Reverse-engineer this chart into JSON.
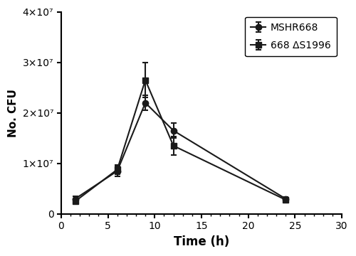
{
  "time": [
    1.5,
    6,
    9,
    12,
    24
  ],
  "mshr668_mean": [
    3000000.0,
    8500000.0,
    22000000.0,
    16500000.0,
    3000000.0
  ],
  "mshr668_err": [
    500000.0,
    1000000.0,
    1500000.0,
    1500000.0,
    400000.0
  ],
  "delta_mean": [
    2500000.0,
    8800000.0,
    26500000.0,
    13500000.0,
    2800000.0
  ],
  "delta_err": [
    400000.0,
    900000.0,
    3500000.0,
    1800000.0,
    300000.0
  ],
  "xlabel": "Time (h)",
  "ylabel": "No. CFU",
  "legend1": "MSHR668",
  "legend2": "668 ΔS1996",
  "xlim": [
    0,
    30
  ],
  "ylim": [
    0,
    40000000.0
  ],
  "xticks": [
    0,
    5,
    10,
    15,
    20,
    25,
    30
  ],
  "yticks": [
    0,
    10000000.0,
    20000000.0,
    30000000.0,
    40000000.0
  ],
  "ytick_labels": [
    "0",
    "1×10⁷",
    "2×10⁷",
    "3×10⁷",
    "4×10⁷"
  ],
  "line_color": "#1a1a1a",
  "background_color": "#ffffff"
}
